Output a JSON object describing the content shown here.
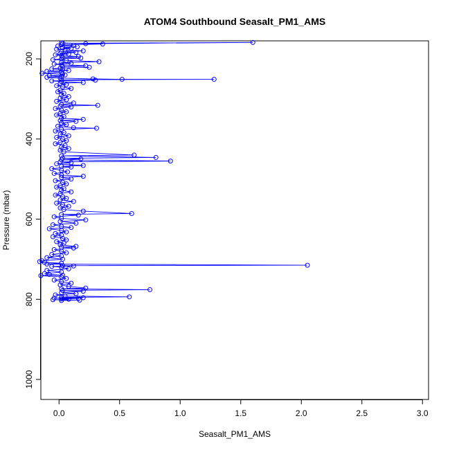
{
  "chart_data": {
    "type": "scatter",
    "title": "ATOM4 Southbound Seasalt_PM1_AMS",
    "xlabel": "Seasalt_PM1_AMS",
    "ylabel": "Pressure (mbar)",
    "xlim": [
      -0.15,
      3.05
    ],
    "ylim": [
      1050,
      155
    ],
    "y_reversed": true,
    "grid": false,
    "x_ticks": [
      {
        "value": 0,
        "label": "0.0"
      },
      {
        "value": 0.5,
        "label": "0.5"
      },
      {
        "value": 1.0,
        "label": "1.0"
      },
      {
        "value": 1.5,
        "label": "1.5"
      },
      {
        "value": 2.0,
        "label": "2.0"
      },
      {
        "value": 2.5,
        "label": "2.5"
      },
      {
        "value": 3.0,
        "label": "3.0"
      }
    ],
    "y_ticks": [
      {
        "value": 200,
        "label": "200"
      },
      {
        "value": 400,
        "label": "400"
      },
      {
        "value": 600,
        "label": "600"
      },
      {
        "value": 800,
        "label": "800"
      },
      {
        "value": 1000,
        "label": "1000"
      }
    ],
    "series": [
      {
        "color": "#0000ff",
        "marker": "open-circle",
        "connected": true,
        "points": [
          [
            0.02,
            160
          ],
          [
            0.22,
            162
          ],
          [
            1.6,
            159
          ],
          [
            0.03,
            161
          ],
          [
            0.36,
            163
          ],
          [
            0.02,
            165
          ],
          [
            0.12,
            166
          ],
          [
            -0.01,
            168
          ],
          [
            0.15,
            170
          ],
          [
            0.03,
            172
          ],
          [
            0.1,
            174
          ],
          [
            -0.02,
            176
          ],
          [
            0.05,
            178
          ],
          [
            0.2,
            180
          ],
          [
            0.02,
            182
          ],
          [
            0.14,
            184
          ],
          [
            0.01,
            186
          ],
          [
            0.08,
            188
          ],
          [
            -0.03,
            190
          ],
          [
            0.02,
            192
          ],
          [
            0.16,
            194
          ],
          [
            0.03,
            196
          ],
          [
            0.18,
            198
          ],
          [
            0.02,
            200
          ],
          [
            -0.05,
            202
          ],
          [
            0.06,
            204
          ],
          [
            0.33,
            207
          ],
          [
            0.02,
            209
          ],
          [
            0.1,
            211
          ],
          [
            -0.04,
            213
          ],
          [
            0.02,
            215
          ],
          [
            0.22,
            217
          ],
          [
            0.03,
            219
          ],
          [
            0.25,
            221
          ],
          [
            0.01,
            223
          ],
          [
            -0.06,
            225
          ],
          [
            0.03,
            227
          ],
          [
            0.08,
            229
          ],
          [
            -0.1,
            231
          ],
          [
            0.02,
            233
          ],
          [
            -0.14,
            236
          ],
          [
            0.03,
            238
          ],
          [
            0.05,
            240
          ],
          [
            -0.08,
            242
          ],
          [
            0.02,
            244
          ],
          [
            -0.1,
            246
          ],
          [
            0.01,
            248
          ],
          [
            0.28,
            250
          ],
          [
            0.52,
            251
          ],
          [
            1.28,
            251
          ],
          [
            0.02,
            252
          ],
          [
            0.3,
            253
          ],
          [
            -0.06,
            255
          ],
          [
            0.02,
            257
          ],
          [
            0.2,
            259
          ],
          [
            0.01,
            261
          ],
          [
            0.06,
            264
          ],
          [
            -0.02,
            267
          ],
          [
            0.03,
            270
          ],
          [
            0.1,
            274
          ],
          [
            0.01,
            278
          ],
          [
            -0.01,
            282
          ],
          [
            0.04,
            286
          ],
          [
            0.02,
            290
          ],
          [
            0.08,
            294
          ],
          [
            0.01,
            298
          ],
          [
            0.06,
            302
          ],
          [
            -0.02,
            306
          ],
          [
            0.12,
            310
          ],
          [
            0.02,
            314
          ],
          [
            0.32,
            316
          ],
          [
            0.01,
            318
          ],
          [
            0.1,
            320
          ],
          [
            -0.03,
            324
          ],
          [
            0.02,
            328
          ],
          [
            0.06,
            332
          ],
          [
            0.01,
            336
          ],
          [
            -0.02,
            340
          ],
          [
            0.04,
            344
          ],
          [
            0.02,
            348
          ],
          [
            0.2,
            351
          ],
          [
            0.01,
            354
          ],
          [
            0.14,
            356
          ],
          [
            0.02,
            360
          ],
          [
            0.06,
            364
          ],
          [
            -0.01,
            368
          ],
          [
            0.12,
            372
          ],
          [
            0.31,
            373
          ],
          [
            0.02,
            376
          ],
          [
            -0.03,
            380
          ],
          [
            0.04,
            384
          ],
          [
            0.01,
            388
          ],
          [
            0.08,
            392
          ],
          [
            -0.02,
            396
          ],
          [
            0.03,
            400
          ],
          [
            0.06,
            404
          ],
          [
            0.01,
            408
          ],
          [
            -0.03,
            412
          ],
          [
            0.05,
            416
          ],
          [
            0.02,
            420
          ],
          [
            0.08,
            424
          ],
          [
            0.01,
            428
          ],
          [
            0.04,
            432
          ],
          [
            0.62,
            440
          ],
          [
            0.02,
            442
          ],
          [
            0.8,
            446
          ],
          [
            0.03,
            448
          ],
          [
            0.18,
            450
          ],
          [
            0.02,
            452
          ],
          [
            0.92,
            455
          ],
          [
            0.01,
            457
          ],
          [
            0.1,
            459
          ],
          [
            -0.02,
            462
          ],
          [
            0.2,
            466
          ],
          [
            0.02,
            468
          ],
          [
            0.1,
            470
          ],
          [
            -0.06,
            474
          ],
          [
            0.02,
            478
          ],
          [
            0.07,
            482
          ],
          [
            -0.04,
            486
          ],
          [
            0.02,
            490
          ],
          [
            0.2,
            493
          ],
          [
            0.02,
            496
          ],
          [
            0.1,
            500
          ],
          [
            -0.03,
            504
          ],
          [
            0.03,
            508
          ],
          [
            0.06,
            512
          ],
          [
            0.01,
            516
          ],
          [
            -0.02,
            520
          ],
          [
            0.04,
            524
          ],
          [
            0.02,
            528
          ],
          [
            0.1,
            532
          ],
          [
            0.01,
            536
          ],
          [
            -0.03,
            540
          ],
          [
            0.03,
            544
          ],
          [
            0.06,
            548
          ],
          [
            0.01,
            552
          ],
          [
            0.12,
            556
          ],
          [
            -0.02,
            560
          ],
          [
            0.03,
            564
          ],
          [
            0.08,
            568
          ],
          [
            0.01,
            572
          ],
          [
            0.04,
            576
          ],
          [
            0.2,
            580
          ],
          [
            0.6,
            586
          ],
          [
            0.02,
            588
          ],
          [
            0.16,
            590
          ],
          [
            -0.04,
            594
          ],
          [
            0.02,
            598
          ],
          [
            0.22,
            602
          ],
          [
            0.01,
            606
          ],
          [
            0.14,
            610
          ],
          [
            -0.05,
            614
          ],
          [
            0.02,
            618
          ],
          [
            0.1,
            621
          ],
          [
            -0.08,
            624
          ],
          [
            0.02,
            628
          ],
          [
            0.06,
            632
          ],
          [
            -0.03,
            636
          ],
          [
            0.02,
            640
          ],
          [
            -0.05,
            644
          ],
          [
            0.03,
            648
          ],
          [
            0.06,
            652
          ],
          [
            -0.02,
            656
          ],
          [
            0.04,
            660
          ],
          [
            0.01,
            664
          ],
          [
            0.14,
            668
          ],
          [
            0.02,
            670
          ],
          [
            0.12,
            672
          ],
          [
            -0.04,
            676
          ],
          [
            0.02,
            680
          ],
          [
            0.06,
            684
          ],
          [
            -0.06,
            688
          ],
          [
            0.02,
            692
          ],
          [
            -0.1,
            696
          ],
          [
            0.03,
            700
          ],
          [
            -0.14,
            704
          ],
          [
            -0.16,
            706
          ],
          [
            -0.12,
            708
          ],
          [
            0.02,
            710
          ],
          [
            -0.1,
            712
          ],
          [
            2.05,
            715
          ],
          [
            0.03,
            716
          ],
          [
            0.12,
            717
          ],
          [
            -0.06,
            718
          ],
          [
            0.02,
            720
          ],
          [
            0.08,
            724
          ],
          [
            -0.1,
            728
          ],
          [
            0.02,
            732
          ],
          [
            -0.12,
            736
          ],
          [
            -0.08,
            738
          ],
          [
            0.03,
            740
          ],
          [
            -0.15,
            741
          ],
          [
            0.02,
            744
          ],
          [
            0.06,
            748
          ],
          [
            -0.04,
            752
          ],
          [
            0.02,
            756
          ],
          [
            0.1,
            760
          ],
          [
            0.01,
            764
          ],
          [
            0.08,
            768
          ],
          [
            0.22,
            772
          ],
          [
            0.02,
            774
          ],
          [
            0.75,
            776
          ],
          [
            0.03,
            778
          ],
          [
            0.2,
            780
          ],
          [
            0.02,
            783
          ],
          [
            0.14,
            786
          ],
          [
            -0.03,
            789
          ],
          [
            0.05,
            792
          ],
          [
            0.58,
            794
          ],
          [
            0.02,
            795
          ],
          [
            0.2,
            796
          ],
          [
            -0.04,
            797
          ],
          [
            0.16,
            798
          ],
          [
            0.02,
            799
          ],
          [
            0.08,
            800
          ],
          [
            -0.05,
            801
          ],
          [
            0.17,
            802
          ],
          [
            0.02,
            803
          ]
        ]
      }
    ]
  }
}
